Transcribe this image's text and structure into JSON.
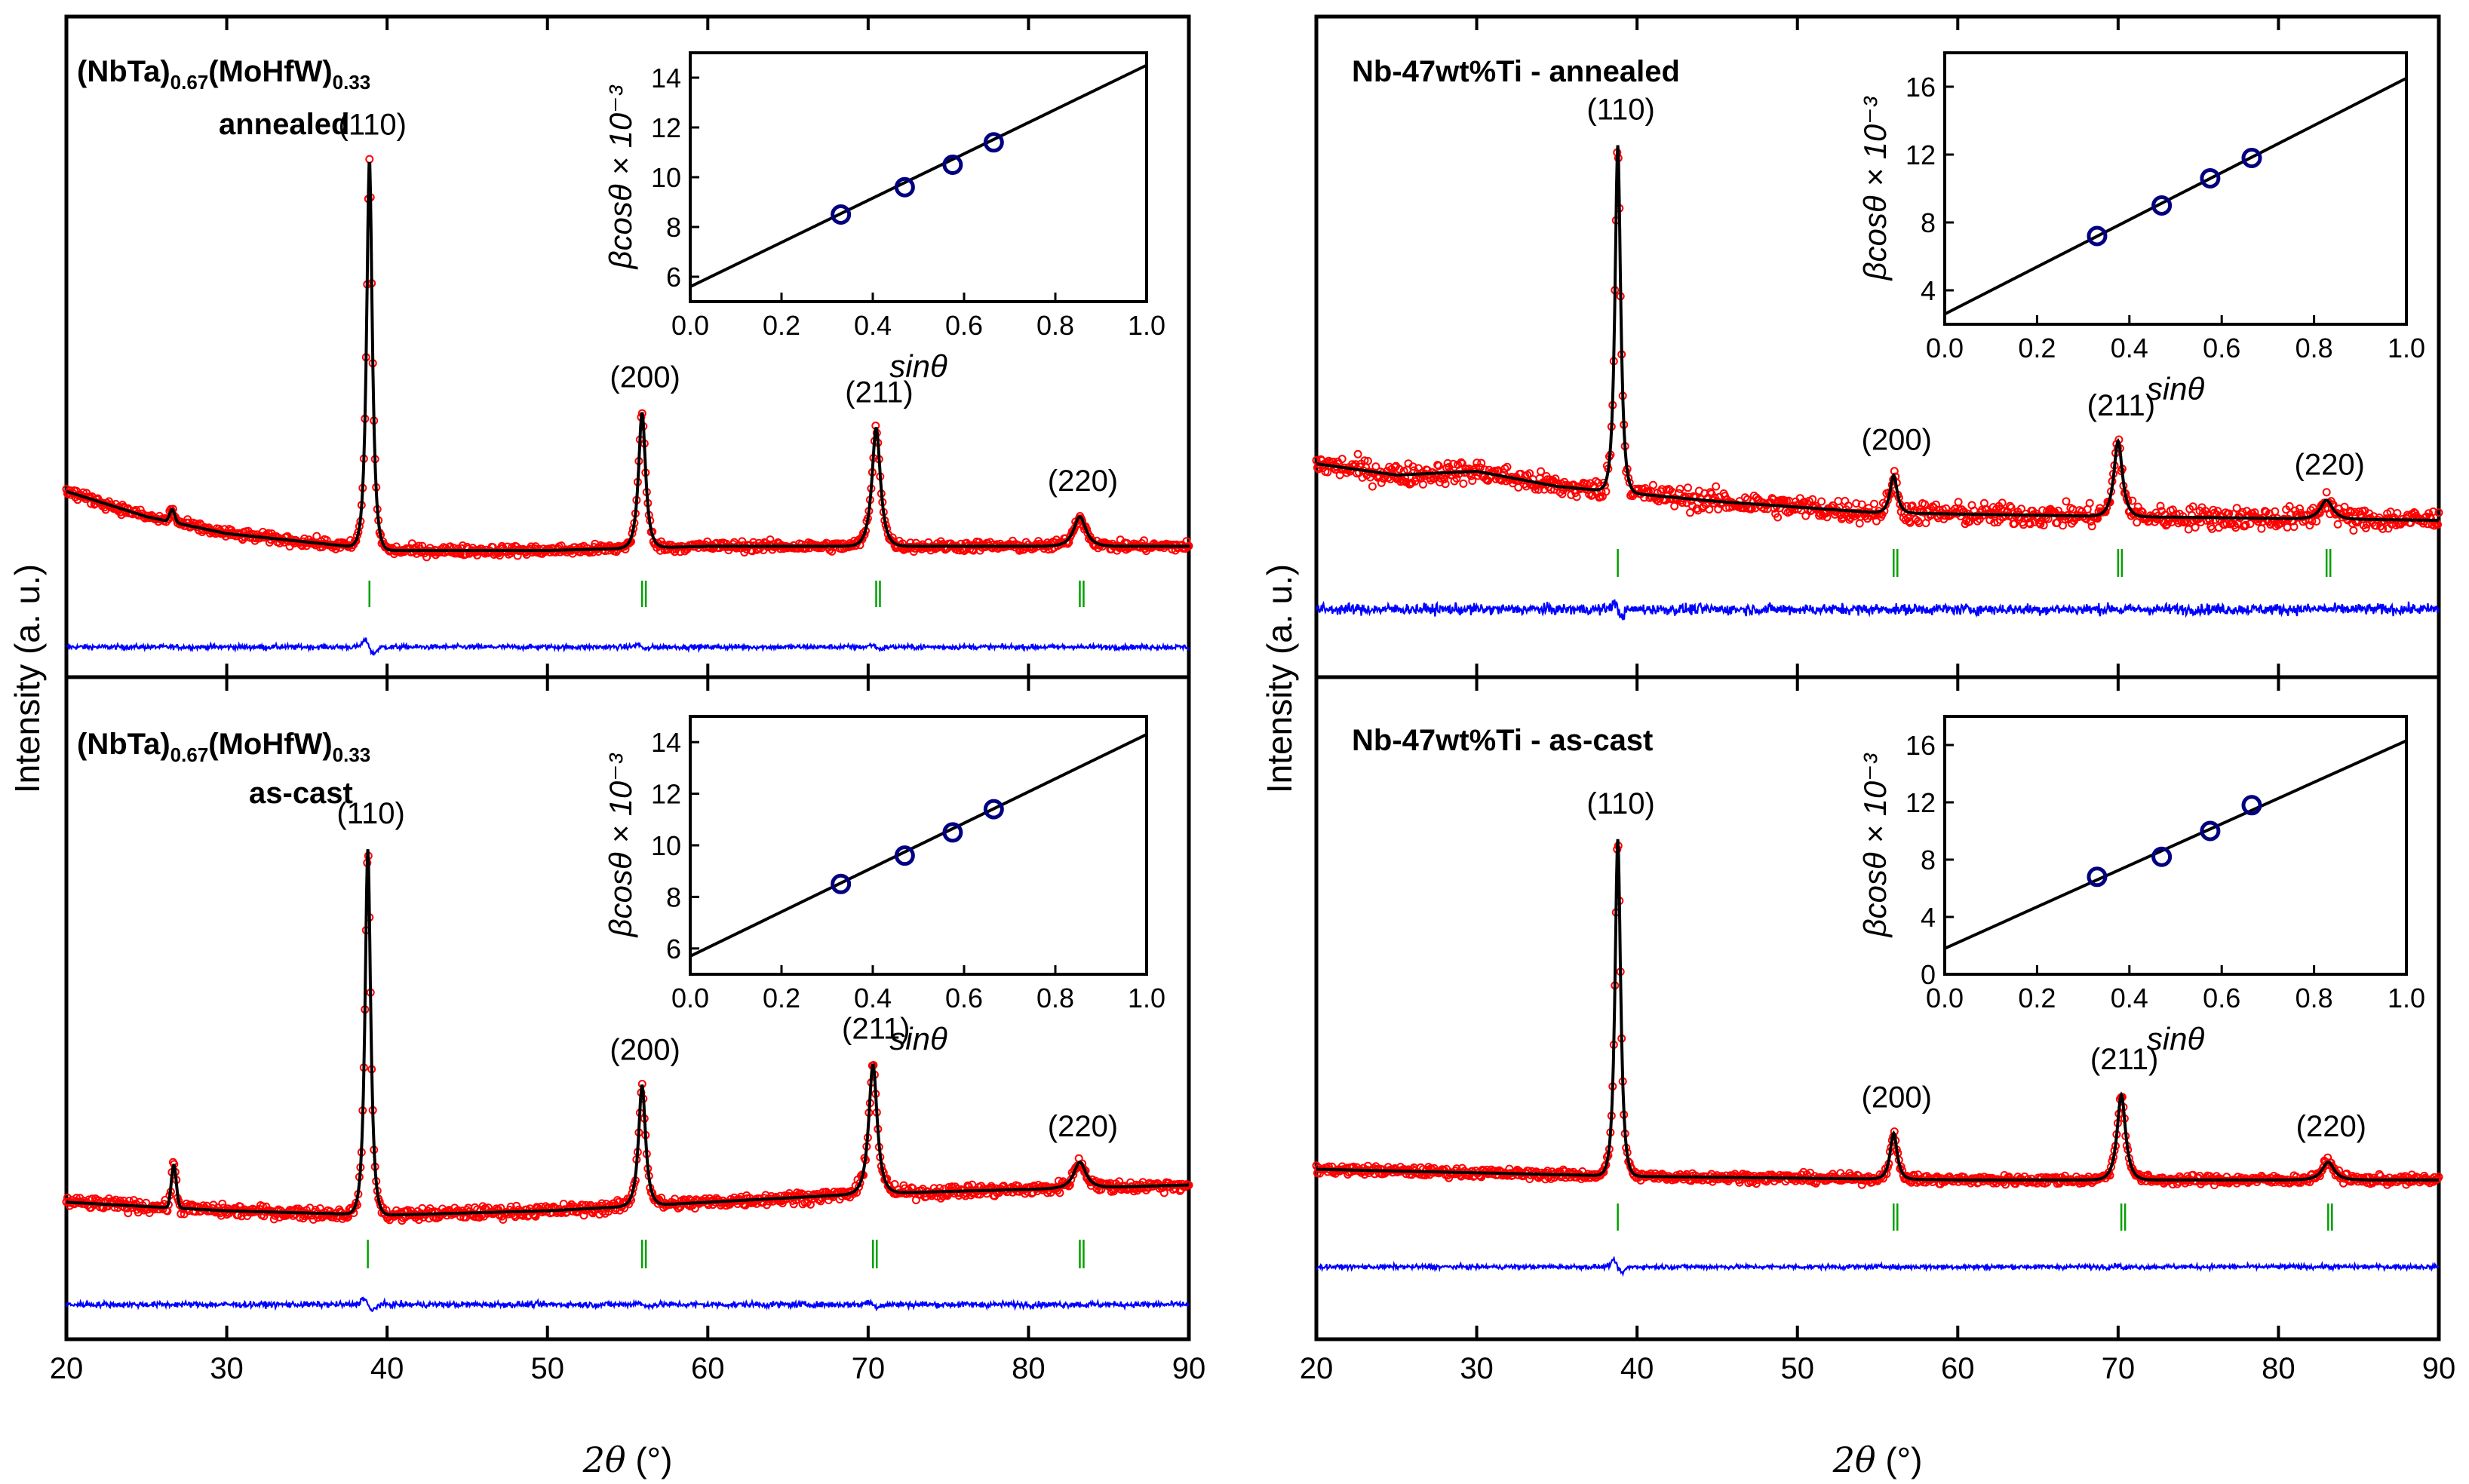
{
  "figure": {
    "left_ylabel": "Intensity (a. u.)",
    "right_ylabel": "Intensity (a. u.)",
    "xlabel_left": "2θ (°)",
    "xlabel_right": "2θ (°)",
    "xlabel_parts": {
      "var": "2θ",
      "unit": " (°)"
    },
    "x_ticks": [
      "20",
      "30",
      "40",
      "50",
      "60",
      "70",
      "80",
      "90"
    ],
    "inset_x_ticks": [
      "0.0",
      "0.2",
      "0.4",
      "0.6",
      "0.8",
      "1.0"
    ],
    "inset_xlabel": "sinθ",
    "inset_ylabel": "βcosθ × 10⁻³",
    "colors": {
      "observed": "#ff0000",
      "fit": "#000000",
      "difference": "#0000ff",
      "bragg": "#00a000",
      "inset_points": "#000080"
    }
  },
  "chart_data": [
    {
      "id": "hea-annealed",
      "type": "line",
      "title_main": "(NbTa)",
      "title_sub1": "0.67",
      "title_mid": "(MoHfW)",
      "title_sub2": "0.33",
      "title_line2": "annealed",
      "xlim": [
        20,
        90
      ],
      "series": [
        "Observed",
        "Fit",
        "Difference",
        "Bragg positions"
      ],
      "background": [
        [
          20,
          0.22
        ],
        [
          25,
          0.16
        ],
        [
          30,
          0.12
        ],
        [
          40,
          0.08
        ],
        [
          50,
          0.08
        ],
        [
          60,
          0.09
        ],
        [
          70,
          0.09
        ],
        [
          80,
          0.09
        ],
        [
          90,
          0.09
        ]
      ],
      "peaks": [
        {
          "hkl": "(110)",
          "pos": 38.9,
          "height": 0.92
        },
        {
          "hkl": "(200)",
          "pos": 55.9,
          "height": 0.32
        },
        {
          "hkl": "(211)",
          "pos": 70.5,
          "height": 0.28
        },
        {
          "hkl": "(220)",
          "pos": 83.2,
          "height": 0.07
        }
      ],
      "minor_peaks": [
        {
          "pos": 26.6,
          "height": 0.03
        }
      ],
      "bragg_positions": [
        38.9,
        55.9,
        70.5,
        83.2
      ],
      "noise": 0.012,
      "inset": {
        "xlim": [
          0.0,
          1.0
        ],
        "ylim": [
          5,
          15
        ],
        "y_ticks": [
          "6",
          "8",
          "10",
          "12",
          "14"
        ],
        "points": [
          [
            0.33,
            8.5
          ],
          [
            0.47,
            9.6
          ],
          [
            0.575,
            10.5
          ],
          [
            0.665,
            11.4
          ]
        ],
        "fit_line": [
          [
            0.0,
            5.6
          ],
          [
            1.0,
            14.5
          ]
        ]
      }
    },
    {
      "id": "hea-ascast",
      "type": "line",
      "title_main": "(NbTa)",
      "title_sub1": "0.67",
      "title_mid": "(MoHfW)",
      "title_sub2": "0.33",
      "title_line2": "as-cast",
      "xlim": [
        20,
        90
      ],
      "series": [
        "Observed",
        "Fit",
        "Difference",
        "Bragg positions"
      ],
      "background": [
        [
          20,
          0.09
        ],
        [
          30,
          0.07
        ],
        [
          40,
          0.06
        ],
        [
          50,
          0.07
        ],
        [
          60,
          0.09
        ],
        [
          70,
          0.11
        ],
        [
          80,
          0.12
        ],
        [
          90,
          0.13
        ]
      ],
      "peaks": [
        {
          "hkl": "(110)",
          "pos": 38.8,
          "height": 0.85
        },
        {
          "hkl": "(200)",
          "pos": 55.9,
          "height": 0.28
        },
        {
          "hkl": "(211)",
          "pos": 70.3,
          "height": 0.3
        },
        {
          "hkl": "(220)",
          "pos": 83.2,
          "height": 0.06
        }
      ],
      "minor_peaks": [
        {
          "pos": 26.7,
          "height": 0.1
        }
      ],
      "bragg_positions": [
        38.8,
        55.9,
        70.3,
        83.2
      ],
      "noise": 0.014,
      "inset": {
        "xlim": [
          0.0,
          1.0
        ],
        "ylim": [
          5,
          15
        ],
        "y_ticks": [
          "6",
          "8",
          "10",
          "12",
          "14"
        ],
        "points": [
          [
            0.33,
            8.5
          ],
          [
            0.47,
            9.6
          ],
          [
            0.575,
            10.5
          ],
          [
            0.665,
            11.4
          ]
        ],
        "fit_line": [
          [
            0.0,
            5.7
          ],
          [
            1.0,
            14.3
          ]
        ]
      }
    },
    {
      "id": "nbti-annealed",
      "type": "line",
      "title_main": "Nb-47wt%Ti - annealed",
      "title_line2": "",
      "xlim": [
        20,
        90
      ],
      "series": [
        "Observed",
        "Fit",
        "Difference",
        "Bragg positions"
      ],
      "background": [
        [
          20,
          0.22
        ],
        [
          25,
          0.19
        ],
        [
          30,
          0.2
        ],
        [
          35,
          0.16
        ],
        [
          45,
          0.12
        ],
        [
          55,
          0.09
        ],
        [
          70,
          0.08
        ],
        [
          90,
          0.07
        ]
      ],
      "peaks": [
        {
          "hkl": "(110)",
          "pos": 38.8,
          "height": 0.92
        },
        {
          "hkl": "(200)",
          "pos": 56.0,
          "height": 0.1
        },
        {
          "hkl": "(211)",
          "pos": 70.0,
          "height": 0.2
        },
        {
          "hkl": "(220)",
          "pos": 83.0,
          "height": 0.05
        }
      ],
      "minor_peaks": [],
      "bragg_positions": [
        38.8,
        56.0,
        70.0,
        83.0
      ],
      "noise": 0.03,
      "inset": {
        "xlim": [
          0.0,
          1.0
        ],
        "ylim": [
          2,
          18
        ],
        "y_ticks": [
          "4",
          "8",
          "12",
          "16"
        ],
        "points": [
          [
            0.33,
            7.2
          ],
          [
            0.47,
            9.0
          ],
          [
            0.575,
            10.6
          ],
          [
            0.665,
            11.8
          ]
        ],
        "fit_line": [
          [
            0.0,
            2.6
          ],
          [
            1.0,
            16.5
          ]
        ]
      }
    },
    {
      "id": "nbti-ascast",
      "type": "line",
      "title_main": "Nb-47wt%Ti - as-cast",
      "title_line2": "",
      "xlim": [
        20,
        90
      ],
      "series": [
        "Observed",
        "Fit",
        "Difference",
        "Bragg positions"
      ],
      "background": [
        [
          20,
          0.1
        ],
        [
          40,
          0.08
        ],
        [
          60,
          0.07
        ],
        [
          90,
          0.07
        ]
      ],
      "peaks": [
        {
          "hkl": "(110)",
          "pos": 38.8,
          "height": 0.95
        },
        {
          "hkl": "(200)",
          "pos": 56.0,
          "height": 0.13
        },
        {
          "hkl": "(211)",
          "pos": 70.2,
          "height": 0.24
        },
        {
          "hkl": "(220)",
          "pos": 83.1,
          "height": 0.05
        }
      ],
      "minor_peaks": [],
      "bragg_positions": [
        38.8,
        56.0,
        70.2,
        83.1
      ],
      "noise": 0.013,
      "inset": {
        "xlim": [
          0.0,
          1.0
        ],
        "ylim": [
          0,
          18
        ],
        "y_ticks": [
          "0",
          "4",
          "8",
          "12",
          "16"
        ],
        "points": [
          [
            0.33,
            6.8
          ],
          [
            0.47,
            8.2
          ],
          [
            0.575,
            10.0
          ],
          [
            0.665,
            11.8
          ]
        ],
        "fit_line": [
          [
            0.0,
            1.8
          ],
          [
            1.0,
            16.3
          ]
        ]
      }
    }
  ]
}
